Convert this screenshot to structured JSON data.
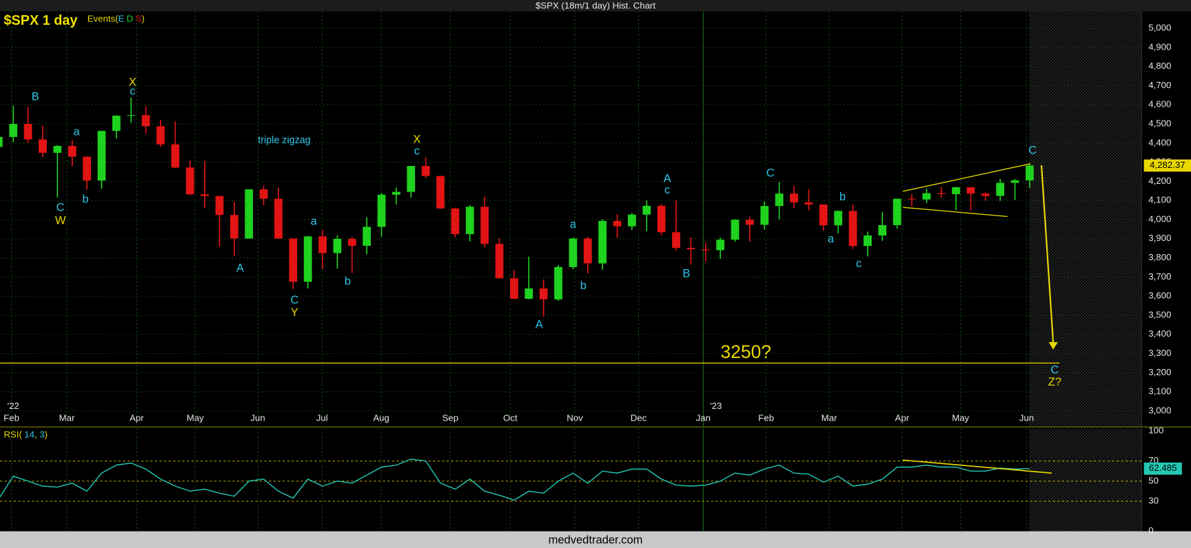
{
  "window_title": "$SPX (18m/1 day) Hist. Chart",
  "footer": "medvedtrader.com",
  "chart_data": {
    "type": "candlestick",
    "title": "$SPX 1 day",
    "events_label": {
      "prefix": "Events(",
      "parts": [
        "E",
        "D",
        "S"
      ],
      "suffix": ")"
    },
    "xlim": [
      0.1,
      77.6
    ],
    "xticks": [
      {
        "value": 0.88,
        "label": "Feb"
      },
      {
        "value": 4.64,
        "label": "Mar"
      },
      {
        "value": 9.38,
        "label": "Apr"
      },
      {
        "value": 13.35,
        "label": "May"
      },
      {
        "value": 17.6,
        "label": "Jun"
      },
      {
        "value": 21.96,
        "label": "Jul"
      },
      {
        "value": 25.98,
        "label": "Aug"
      },
      {
        "value": 30.67,
        "label": "Sep"
      },
      {
        "value": 34.74,
        "label": "Oct"
      },
      {
        "value": 39.12,
        "label": "Nov"
      },
      {
        "value": 43.45,
        "label": "Dec"
      },
      {
        "value": 47.84,
        "label": "Jan"
      },
      {
        "value": 52.11,
        "label": "Feb"
      },
      {
        "value": 56.39,
        "label": "Mar"
      },
      {
        "value": 61.34,
        "label": "Apr"
      },
      {
        "value": 65.31,
        "label": "May"
      },
      {
        "value": 69.79,
        "label": "Jun"
      }
    ],
    "year_ticks": [
      {
        "value": 0.6,
        "label": "'22"
      },
      {
        "value": 48.3,
        "label": "'23"
      }
    ],
    "ylim": [
      2916,
      5088
    ],
    "yticks": [
      {
        "value": 3000,
        "label": "3,000"
      },
      {
        "value": 3100,
        "label": "3,100"
      },
      {
        "value": 3200,
        "label": "3,200"
      },
      {
        "value": 3300,
        "label": "3,300"
      },
      {
        "value": 3400,
        "label": "3,400"
      },
      {
        "value": 3500,
        "label": "3,500"
      },
      {
        "value": 3600,
        "label": "3,600"
      },
      {
        "value": 3700,
        "label": "3,700"
      },
      {
        "value": 3800,
        "label": "3,800"
      },
      {
        "value": 3900,
        "label": "3,900"
      },
      {
        "value": 4000,
        "label": "4,000"
      },
      {
        "value": 4100,
        "label": "4,100"
      },
      {
        "value": 4200,
        "label": "4,200"
      },
      {
        "value": 4300,
        "label": "4,300"
      },
      {
        "value": 4400,
        "label": "4,400"
      },
      {
        "value": 4500,
        "label": "4,500"
      },
      {
        "value": 4600,
        "label": "4,600"
      },
      {
        "value": 4700,
        "label": "4,700"
      },
      {
        "value": 4800,
        "label": "4,800"
      },
      {
        "value": 4900,
        "label": "4,900"
      },
      {
        "value": 5000,
        "label": "5,000"
      }
    ],
    "grid": true,
    "up_color": "#1ed21e",
    "down_color": "#e21414",
    "open": [
      4380,
      4432,
      4500,
      4419,
      4349,
      4385,
      4329,
      4204,
      4463,
      4543,
      4546,
      4488,
      4393,
      4272,
      4132,
      4123,
      4024,
      3901,
      4158,
      4109,
      3901,
      3675,
      3912,
      3825,
      3899,
      3863,
      3962,
      4130,
      4145,
      4280,
      4228,
      4058,
      3924,
      4067,
      3873,
      3693,
      3586,
      3640,
      3583,
      3752,
      3901,
      3771,
      3993,
      3965,
      4026,
      4072,
      3934,
      3852,
      3845,
      3840,
      3895,
      3999,
      3973,
      4071,
      4136,
      4090,
      4079,
      3970,
      4045,
      3862,
      3917,
      3971,
      4109,
      4105,
      4138,
      4133,
      4169,
      4136,
      4124,
      4192,
      4205
    ],
    "high": [
      4453,
      4595,
      4590,
      4490,
      4390,
      4416,
      4330,
      4465,
      4546,
      4637,
      4593,
      4521,
      4513,
      4308,
      4307,
      4124,
      4091,
      4158,
      4177,
      4168,
      3902,
      3914,
      3945,
      3918,
      3911,
      4012,
      4140,
      4167,
      4280,
      4325,
      4228,
      4062,
      4076,
      4120,
      3904,
      3736,
      3806,
      3687,
      3762,
      3906,
      3911,
      4001,
      4028,
      4034,
      4100,
      4080,
      4101,
      3906,
      3877,
      3906,
      4003,
      4015,
      4095,
      4195,
      4176,
      4160,
      4080,
      4048,
      4078,
      3937,
      4039,
      4110,
      4133,
      4163,
      4170,
      4171,
      4170,
      4143,
      4212,
      4212,
      4290
    ],
    "low": [
      4222,
      4405,
      4401,
      4327,
      4115,
      4279,
      4157,
      4161,
      4424,
      4507,
      4450,
      4381,
      4268,
      4128,
      4062,
      3859,
      3810,
      3900,
      4074,
      3900,
      3637,
      3640,
      3741,
      3743,
      3721,
      3819,
      3911,
      4080,
      4115,
      4218,
      4057,
      3907,
      3886,
      3855,
      3693,
      3584,
      3583,
      3492,
      3575,
      3740,
      3719,
      3738,
      3906,
      3945,
      3939,
      3918,
      3839,
      3765,
      3783,
      3795,
      3885,
      3885,
      3949,
      4001,
      4060,
      4048,
      3943,
      3928,
      3847,
      3808,
      3889,
      3953,
      4069,
      4086,
      4114,
      4049,
      4048,
      4099,
      4098,
      4103,
      4166
    ],
    "close": [
      4432,
      4500,
      4419,
      4349,
      4385,
      4329,
      4204,
      4463,
      4543,
      4546,
      4488,
      4393,
      4272,
      4132,
      4123,
      4024,
      3901,
      4158,
      4109,
      3901,
      3675,
      3912,
      3825,
      3899,
      3863,
      3962,
      4130,
      4145,
      4280,
      4228,
      4058,
      3924,
      4067,
      3873,
      3693,
      3586,
      3640,
      3583,
      3752,
      3901,
      3771,
      3993,
      3965,
      4026,
      4072,
      3934,
      3852,
      3845,
      3840,
      3895,
      3999,
      3973,
      4071,
      4136,
      4090,
      4079,
      3970,
      4045,
      3862,
      3917,
      3971,
      4109,
      4105,
      4138,
      4133,
      4169,
      4136,
      4124,
      4192,
      4205,
      4282.37
    ],
    "last_close_label": {
      "value": 4282.37,
      "label": "4,282.37"
    },
    "hline": {
      "value": 3250,
      "label": "3250?",
      "color": "#e8d800"
    },
    "annotations": [
      {
        "text": "B",
        "x": 2.5,
        "y": 4640,
        "color": "#2ec4e6"
      },
      {
        "text": "C",
        "x": 4.2,
        "y": 4060,
        "color": "#2ec4e6"
      },
      {
        "text": "W",
        "x": 4.2,
        "y": 3992,
        "color": "#e8d800"
      },
      {
        "text": "a",
        "x": 5.3,
        "y": 4456,
        "color": "#2ec4e6"
      },
      {
        "text": "b",
        "x": 5.9,
        "y": 4104,
        "color": "#2ec4e6"
      },
      {
        "text": "X",
        "x": 9.1,
        "y": 4716,
        "color": "#e8d800"
      },
      {
        "text": "c",
        "x": 9.1,
        "y": 4668,
        "color": "#2ec4e6"
      },
      {
        "text": "triple zigzag",
        "x": 19.4,
        "y": 4412,
        "color": "#2ec4e6"
      },
      {
        "text": "A",
        "x": 16.4,
        "y": 3744,
        "color": "#2ec4e6"
      },
      {
        "text": "C",
        "x": 20.1,
        "y": 3576,
        "color": "#2ec4e6"
      },
      {
        "text": "Y",
        "x": 20.1,
        "y": 3512,
        "color": "#e8d800"
      },
      {
        "text": "a",
        "x": 21.4,
        "y": 3988,
        "color": "#2ec4e6"
      },
      {
        "text": "b",
        "x": 23.7,
        "y": 3676,
        "color": "#2ec4e6"
      },
      {
        "text": "X",
        "x": 28.4,
        "y": 4416,
        "color": "#e8d800"
      },
      {
        "text": "c",
        "x": 28.4,
        "y": 4356,
        "color": "#2ec4e6"
      },
      {
        "text": "A",
        "x": 36.7,
        "y": 3448,
        "color": "#2ec4e6"
      },
      {
        "text": "a",
        "x": 39,
        "y": 3972,
        "color": "#2ec4e6"
      },
      {
        "text": "b",
        "x": 39.7,
        "y": 3652,
        "color": "#2ec4e6"
      },
      {
        "text": "A",
        "x": 45.4,
        "y": 4212,
        "color": "#2ec4e6"
      },
      {
        "text": "c",
        "x": 45.4,
        "y": 4152,
        "color": "#2ec4e6"
      },
      {
        "text": "B",
        "x": 46.7,
        "y": 3716,
        "color": "#2ec4e6"
      },
      {
        "text": "C",
        "x": 52.4,
        "y": 4240,
        "color": "#2ec4e6"
      },
      {
        "text": "b",
        "x": 57.3,
        "y": 4116,
        "color": "#2ec4e6"
      },
      {
        "text": "a",
        "x": 56.5,
        "y": 3896,
        "color": "#2ec4e6"
      },
      {
        "text": "c",
        "x": 58.4,
        "y": 3768,
        "color": "#2ec4e6"
      },
      {
        "text": "C",
        "x": 70.2,
        "y": 4360,
        "color": "#2ec4e6"
      },
      {
        "text": "C",
        "x": 71.7,
        "y": 3212,
        "color": "#2ec4e6"
      },
      {
        "text": "Z?",
        "x": 71.7,
        "y": 3148,
        "color": "#e8d800"
      }
    ],
    "trendlines": [
      {
        "x": [
          61.4,
          70.05
        ],
        "y": [
          4148,
          4292
        ]
      },
      {
        "x": [
          61.4,
          68.5
        ],
        "y": [
          4064,
          4016
        ]
      }
    ],
    "arrow": {
      "x": [
        70.8,
        71.6
      ],
      "y": [
        4284,
        3328
      ]
    },
    "rsi": {
      "label": {
        "prefix": "RSI(",
        "period": 14,
        "smooth": 3,
        "suffix": ")"
      },
      "ylim": [
        0,
        102.5
      ],
      "yticks": [
        0,
        30,
        50,
        70,
        100
      ],
      "levels": [
        30,
        50,
        70
      ],
      "color": "#22c8b4",
      "values": [
        32,
        55,
        50,
        45,
        44,
        48,
        40,
        58,
        66,
        68,
        62,
        52,
        45,
        40,
        42,
        38,
        35,
        50,
        52,
        40,
        33,
        52,
        45,
        50,
        48,
        56,
        64,
        66,
        72,
        70,
        48,
        42,
        52,
        40,
        36,
        31,
        40,
        38,
        50,
        58,
        48,
        60,
        58,
        62,
        62,
        52,
        46,
        45,
        46,
        50,
        58,
        56,
        62,
        66,
        58,
        57,
        49,
        55,
        45,
        47,
        52,
        64,
        64,
        66,
        64,
        64,
        60,
        60,
        63,
        62,
        62.485
      ],
      "trendline": {
        "x": [
          61.4,
          71.5
        ],
        "y": [
          71,
          58
        ]
      }
    }
  }
}
